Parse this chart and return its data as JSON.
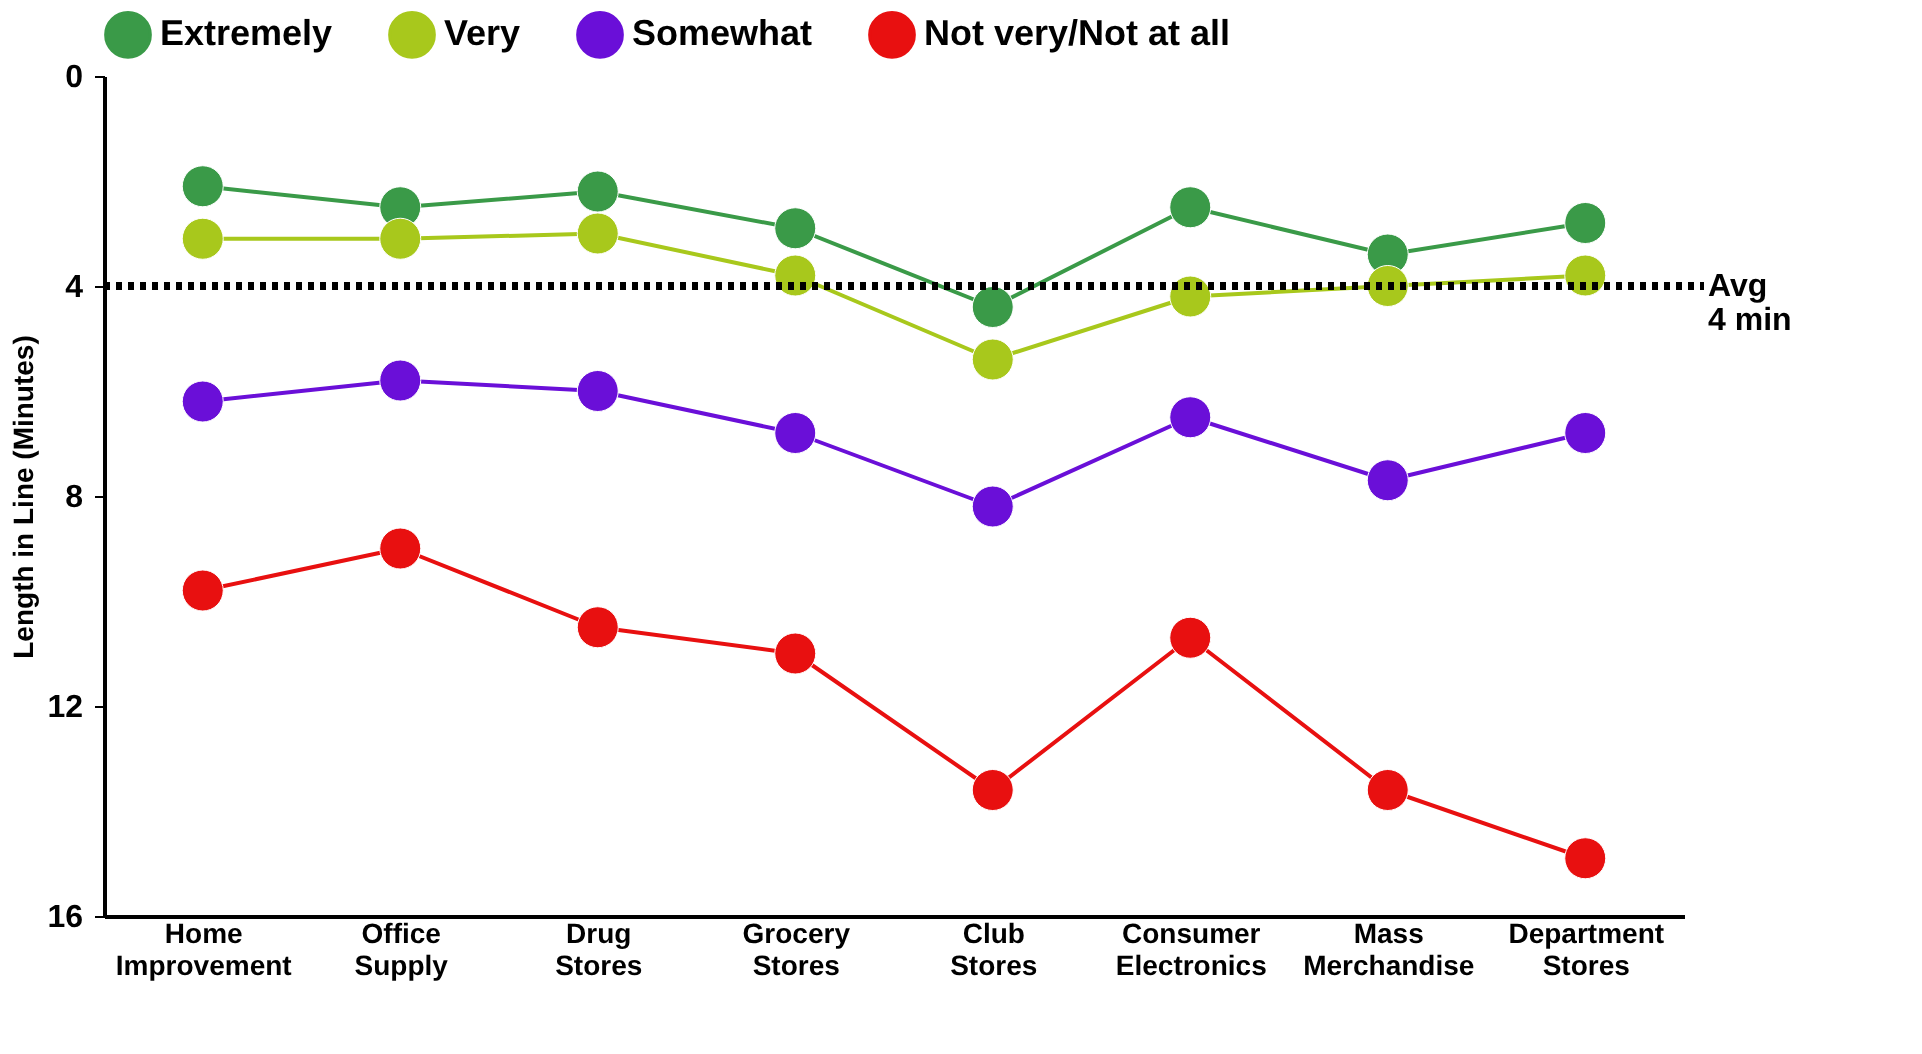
{
  "chart_data": {
    "type": "line",
    "ylabel": "Length in Line (Minutes)",
    "categories": [
      "Home Improvement",
      "Office Supply",
      "Drug Stores",
      "Grocery Stores",
      "Club Stores",
      "Consumer Electronics",
      "Mass Merchandise",
      "Department Stores"
    ],
    "series": [
      {
        "name": "Extremely",
        "color": "#3a9a48",
        "values": [
          2.1,
          2.5,
          2.2,
          2.9,
          4.4,
          2.5,
          3.4,
          2.8
        ]
      },
      {
        "name": "Very",
        "color": "#a8c81c",
        "values": [
          3.1,
          3.1,
          3.0,
          3.8,
          5.4,
          4.2,
          4.0,
          3.8
        ]
      },
      {
        "name": "Somewhat",
        "color": "#6a0fd8",
        "values": [
          6.2,
          5.8,
          6.0,
          6.8,
          8.2,
          6.5,
          7.7,
          6.8
        ]
      },
      {
        "name": "Not very/Not at all",
        "color": "#e81010",
        "values": [
          9.8,
          9.0,
          10.5,
          11.0,
          13.6,
          10.7,
          13.6,
          14.9
        ]
      }
    ],
    "ylim": [
      16,
      0
    ],
    "yticks": [
      0,
      4,
      8,
      12,
      16
    ],
    "ref_lines": [
      {
        "axis": "y",
        "value": 4,
        "label": "Avg\n4 min",
        "color": "#000000",
        "line_style": "dotted"
      }
    ],
    "marker": "circle",
    "grid": false,
    "legend": "top"
  }
}
